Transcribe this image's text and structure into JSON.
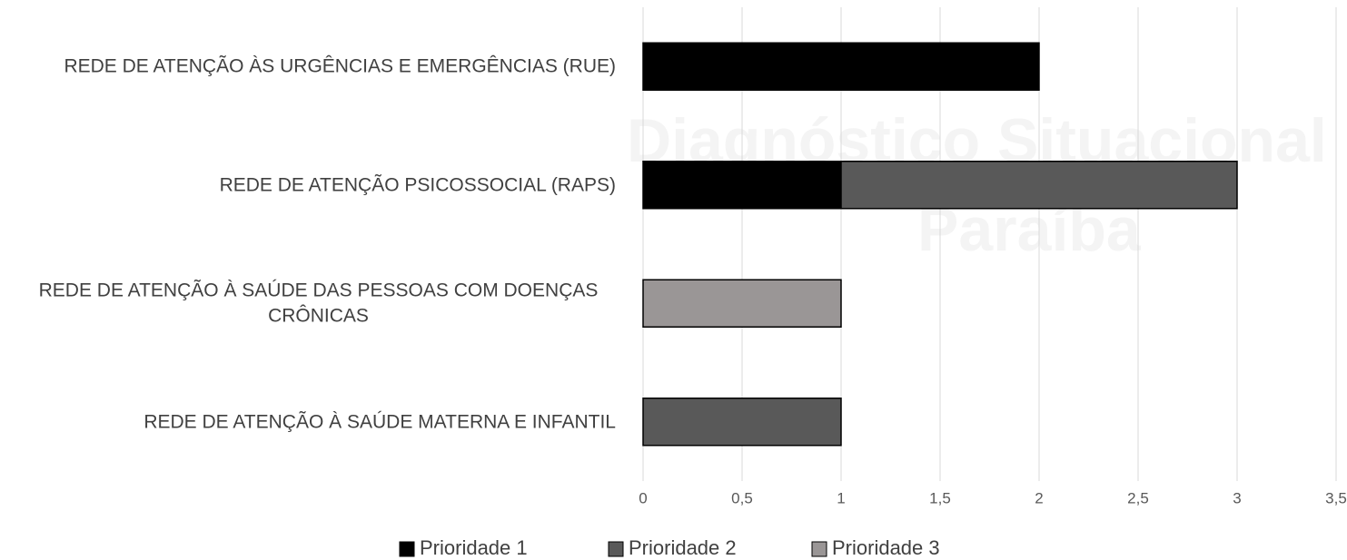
{
  "chart_data": {
    "type": "stacked_barh",
    "watermark": [
      "Diagnóstico Situacional",
      "Paraíba"
    ],
    "categories": [
      "REDE DE ATENÇÃO ÀS URGÊNCIAS E EMERGÊNCIAS (RUE)",
      "REDE DE ATENÇÃO PSICOSSOCIAL (RAPS)",
      "REDE DE ATENÇÃO À SAÚDE DAS PESSOAS COM DOENÇAS CRÔNICAS",
      "REDE DE ATENÇÃO À SAÚDE MATERNA E INFANTIL"
    ],
    "series": [
      {
        "name": "Prioridade 1",
        "color": "#000000",
        "values": [
          2,
          1,
          0,
          0
        ]
      },
      {
        "name": "Prioridade 2",
        "color": "#595959",
        "values": [
          0,
          2,
          0,
          1
        ]
      },
      {
        "name": "Prioridade 3",
        "color": "#9a9696",
        "values": [
          0,
          0,
          1,
          0
        ]
      }
    ],
    "xlim": [
      0,
      3.5
    ],
    "xticks": [
      0,
      {
        "value": 0.5,
        "label": "0,5"
      },
      1,
      {
        "value": 1.5,
        "label": "1,5"
      },
      2,
      {
        "value": 2.5,
        "label": "2,5"
      },
      3,
      {
        "value": 3.5,
        "label": "3,5"
      }
    ],
    "grid": true,
    "legend": "bottom"
  }
}
